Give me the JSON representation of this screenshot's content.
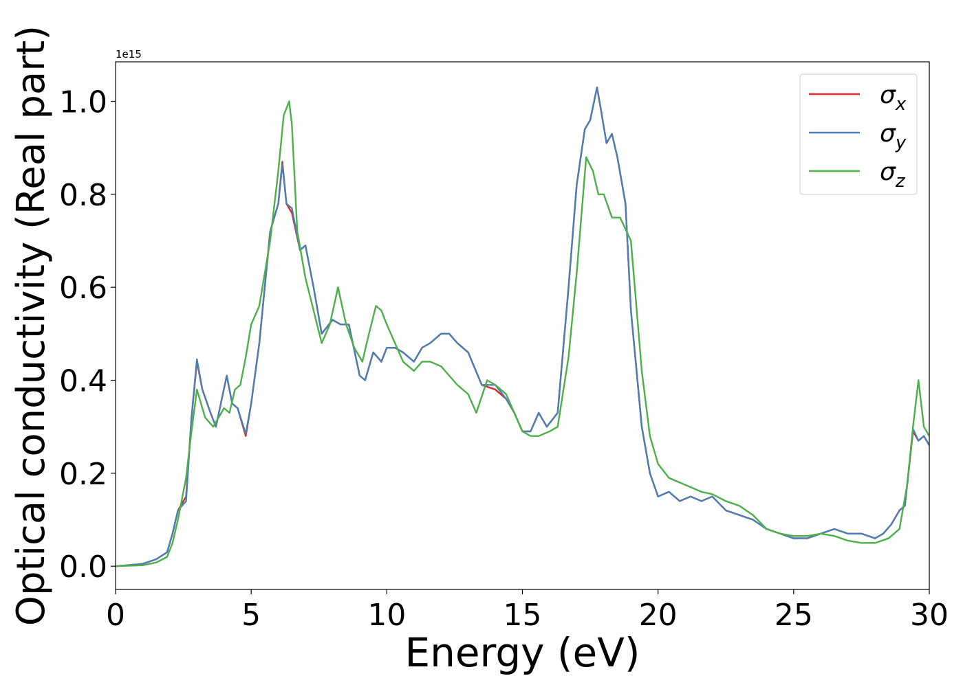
{
  "chart_data": {
    "type": "line",
    "xlabel": "Energy (eV)",
    "ylabel": "Optical conductivity (Real part)",
    "y_offset_label": "1e15",
    "y_scale": 1000000000000000.0,
    "xlim": [
      0,
      30
    ],
    "ylim": [
      -0.05,
      1.085
    ],
    "xticks": [
      0,
      5,
      10,
      15,
      20,
      25,
      30
    ],
    "xtick_labels": [
      "0",
      "5",
      "10",
      "15",
      "20",
      "25",
      "30"
    ],
    "yticks": [
      0.0,
      0.2,
      0.4,
      0.6,
      0.8,
      1.0
    ],
    "ytick_labels": [
      "0.0",
      "0.2",
      "0.4",
      "0.6",
      "0.8",
      "1.0"
    ],
    "grid": false,
    "legend_position": "top-right",
    "series": [
      {
        "name": "σx",
        "legend_base": "σ",
        "legend_sub": "x",
        "color": "#d62728",
        "x": [
          0,
          1,
          1.5,
          1.9,
          2.1,
          2.3,
          2.6,
          2.8,
          3.0,
          3.2,
          3.5,
          3.7,
          4.1,
          4.3,
          4.5,
          4.8,
          5.0,
          5.3,
          5.7,
          6.0,
          6.15,
          6.3,
          6.5,
          6.8,
          7.0,
          7.3,
          7.6,
          8.0,
          8.3,
          8.6,
          9.0,
          9.2,
          9.5,
          9.8,
          10.0,
          10.3,
          10.6,
          11.0,
          11.3,
          11.6,
          12.0,
          12.3,
          12.6,
          13.0,
          13.5,
          14.0,
          14.4,
          14.7,
          15.0,
          15.3,
          15.6,
          15.9,
          16.3,
          16.7,
          17.0,
          17.3,
          17.5,
          17.75,
          17.9,
          18.1,
          18.3,
          18.5,
          18.8,
          19.0,
          19.4,
          19.7,
          20.0,
          20.4,
          20.8,
          21.2,
          21.6,
          22.0,
          22.5,
          23.0,
          23.5,
          24.0,
          24.5,
          25.0,
          25.5,
          26.0,
          26.5,
          27.0,
          27.5,
          28.0,
          28.3,
          28.6,
          28.9,
          29.1,
          29.4,
          29.6,
          29.8,
          30.0
        ],
        "values": [
          0.0,
          0.005,
          0.015,
          0.03,
          0.07,
          0.12,
          0.15,
          0.32,
          0.44,
          0.38,
          0.33,
          0.3,
          0.41,
          0.35,
          0.34,
          0.28,
          0.35,
          0.48,
          0.72,
          0.78,
          0.87,
          0.78,
          0.76,
          0.68,
          0.69,
          0.6,
          0.5,
          0.53,
          0.52,
          0.52,
          0.41,
          0.4,
          0.46,
          0.44,
          0.47,
          0.47,
          0.46,
          0.44,
          0.47,
          0.48,
          0.5,
          0.5,
          0.48,
          0.46,
          0.39,
          0.38,
          0.36,
          0.33,
          0.29,
          0.29,
          0.33,
          0.3,
          0.33,
          0.6,
          0.82,
          0.94,
          0.96,
          1.03,
          0.98,
          0.91,
          0.93,
          0.88,
          0.78,
          0.55,
          0.3,
          0.2,
          0.15,
          0.16,
          0.14,
          0.15,
          0.14,
          0.15,
          0.12,
          0.11,
          0.1,
          0.08,
          0.07,
          0.06,
          0.06,
          0.07,
          0.08,
          0.07,
          0.07,
          0.06,
          0.07,
          0.09,
          0.12,
          0.13,
          0.29,
          0.27,
          0.28,
          0.26
        ]
      },
      {
        "name": "σy",
        "legend_base": "σ",
        "legend_sub": "y",
        "color": "#4a7fb5",
        "x": [
          0,
          1,
          1.5,
          1.9,
          2.1,
          2.3,
          2.6,
          2.8,
          3.0,
          3.2,
          3.5,
          3.7,
          4.1,
          4.3,
          4.5,
          4.8,
          5.0,
          5.3,
          5.7,
          6.0,
          6.15,
          6.3,
          6.5,
          6.8,
          7.0,
          7.3,
          7.6,
          8.0,
          8.3,
          8.6,
          9.0,
          9.2,
          9.5,
          9.8,
          10.0,
          10.3,
          10.6,
          11.0,
          11.3,
          11.6,
          12.0,
          12.3,
          12.6,
          13.0,
          13.5,
          14.0,
          14.4,
          14.7,
          15.0,
          15.3,
          15.6,
          15.9,
          16.3,
          16.7,
          17.0,
          17.3,
          17.5,
          17.75,
          17.9,
          18.1,
          18.3,
          18.5,
          18.8,
          19.0,
          19.4,
          19.7,
          20.0,
          20.4,
          20.8,
          21.2,
          21.6,
          22.0,
          22.5,
          23.0,
          23.5,
          24.0,
          24.5,
          25.0,
          25.5,
          26.0,
          26.5,
          27.0,
          27.5,
          28.0,
          28.3,
          28.6,
          28.9,
          29.1,
          29.4,
          29.6,
          29.8,
          30.0
        ],
        "values": [
          0.0,
          0.005,
          0.015,
          0.03,
          0.07,
          0.12,
          0.14,
          0.32,
          0.445,
          0.38,
          0.33,
          0.3,
          0.41,
          0.35,
          0.34,
          0.285,
          0.35,
          0.48,
          0.72,
          0.78,
          0.865,
          0.78,
          0.77,
          0.68,
          0.69,
          0.6,
          0.5,
          0.53,
          0.52,
          0.52,
          0.41,
          0.4,
          0.46,
          0.44,
          0.47,
          0.47,
          0.46,
          0.44,
          0.47,
          0.48,
          0.5,
          0.5,
          0.48,
          0.46,
          0.39,
          0.39,
          0.36,
          0.33,
          0.29,
          0.29,
          0.33,
          0.3,
          0.33,
          0.6,
          0.82,
          0.94,
          0.96,
          1.03,
          0.98,
          0.91,
          0.93,
          0.88,
          0.78,
          0.55,
          0.3,
          0.2,
          0.15,
          0.16,
          0.14,
          0.15,
          0.14,
          0.15,
          0.12,
          0.11,
          0.1,
          0.08,
          0.07,
          0.06,
          0.06,
          0.07,
          0.08,
          0.07,
          0.07,
          0.06,
          0.07,
          0.09,
          0.12,
          0.13,
          0.295,
          0.27,
          0.28,
          0.26
        ]
      },
      {
        "name": "σz",
        "legend_base": "σ",
        "legend_sub": "z",
        "color": "#4daf4a",
        "x": [
          0,
          1,
          1.5,
          1.9,
          2.1,
          2.3,
          2.6,
          2.8,
          3.0,
          3.3,
          3.6,
          3.8,
          4.0,
          4.2,
          4.4,
          4.6,
          4.8,
          5.0,
          5.3,
          5.7,
          6.0,
          6.2,
          6.4,
          6.5,
          6.7,
          7.0,
          7.3,
          7.6,
          7.9,
          8.2,
          8.5,
          8.8,
          9.1,
          9.3,
          9.6,
          9.8,
          10.0,
          10.3,
          10.6,
          11.0,
          11.3,
          11.6,
          12.0,
          12.3,
          12.6,
          13.0,
          13.3,
          13.7,
          14.0,
          14.4,
          14.7,
          15.0,
          15.3,
          15.6,
          16.0,
          16.3,
          16.7,
          17.0,
          17.35,
          17.6,
          17.8,
          18.0,
          18.3,
          18.6,
          19.0,
          19.4,
          19.7,
          20.0,
          20.4,
          20.8,
          21.2,
          21.6,
          22.0,
          22.5,
          23.0,
          23.5,
          24.0,
          24.5,
          25.0,
          25.5,
          26.0,
          26.5,
          27.0,
          27.5,
          28.0,
          28.5,
          28.9,
          29.2,
          29.4,
          29.6,
          29.8,
          30.0
        ],
        "values": [
          0.0,
          0.002,
          0.008,
          0.02,
          0.05,
          0.1,
          0.19,
          0.29,
          0.38,
          0.32,
          0.3,
          0.32,
          0.34,
          0.33,
          0.38,
          0.39,
          0.45,
          0.52,
          0.56,
          0.7,
          0.85,
          0.97,
          1.0,
          0.95,
          0.72,
          0.62,
          0.55,
          0.48,
          0.52,
          0.6,
          0.52,
          0.47,
          0.44,
          0.49,
          0.56,
          0.55,
          0.52,
          0.48,
          0.44,
          0.42,
          0.44,
          0.44,
          0.43,
          0.41,
          0.39,
          0.37,
          0.33,
          0.4,
          0.39,
          0.37,
          0.33,
          0.29,
          0.28,
          0.28,
          0.29,
          0.3,
          0.45,
          0.63,
          0.88,
          0.85,
          0.8,
          0.8,
          0.75,
          0.75,
          0.7,
          0.42,
          0.28,
          0.22,
          0.19,
          0.18,
          0.17,
          0.16,
          0.155,
          0.14,
          0.13,
          0.11,
          0.08,
          0.07,
          0.065,
          0.065,
          0.07,
          0.065,
          0.055,
          0.05,
          0.05,
          0.06,
          0.08,
          0.18,
          0.3,
          0.4,
          0.3,
          0.28
        ]
      }
    ]
  }
}
